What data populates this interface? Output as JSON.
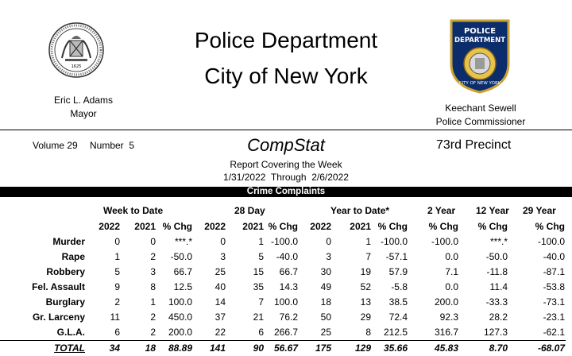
{
  "header": {
    "title_line1": "Police Department",
    "title_line2": "City of New York",
    "mayor_name": "Eric L. Adams",
    "mayor_title": "Mayor",
    "commissioner_name": "Keechant Sewell",
    "commissioner_title": "Police Commissioner",
    "seal_year": "1625",
    "badge_top": "POLICE",
    "badge_mid": "DEPARTMENT",
    "badge_bottom": "CITY OF NEW YORK"
  },
  "report": {
    "volume": "Volume 29",
    "number": "Number  5",
    "compstat": "CompStat",
    "precinct": "73rd Precinct",
    "covering": "Report Covering the Week",
    "dates": "1/31/2022  Through  2/6/2022",
    "band": "Crime Complaints"
  },
  "table": {
    "groups": [
      "Week to Date",
      "28 Day",
      "Year to Date*",
      "2 Year",
      "12 Year",
      "29 Year"
    ],
    "subheaders": [
      "2022",
      "2021",
      "% Chg",
      "2022",
      "2021",
      "% Chg",
      "2022",
      "2021",
      "% Chg",
      "% Chg",
      "% Chg",
      "% Chg"
    ],
    "rows": [
      {
        "label": "Murder",
        "v": [
          "0",
          "0",
          "***.*",
          "0",
          "1",
          "-100.0",
          "0",
          "1",
          "-100.0",
          "-100.0",
          "***.*",
          "-100.0"
        ]
      },
      {
        "label": "Rape",
        "v": [
          "1",
          "2",
          "-50.0",
          "3",
          "5",
          "-40.0",
          "3",
          "7",
          "-57.1",
          "0.0",
          "-50.0",
          "-40.0"
        ]
      },
      {
        "label": "Robbery",
        "v": [
          "5",
          "3",
          "66.7",
          "25",
          "15",
          "66.7",
          "30",
          "19",
          "57.9",
          "7.1",
          "-11.8",
          "-87.1"
        ]
      },
      {
        "label": "Fel. Assault",
        "v": [
          "9",
          "8",
          "12.5",
          "40",
          "35",
          "14.3",
          "49",
          "52",
          "-5.8",
          "0.0",
          "11.4",
          "-53.8"
        ]
      },
      {
        "label": "Burglary",
        "v": [
          "2",
          "1",
          "100.0",
          "14",
          "7",
          "100.0",
          "18",
          "13",
          "38.5",
          "200.0",
          "-33.3",
          "-73.1"
        ]
      },
      {
        "label": "Gr. Larceny",
        "v": [
          "11",
          "2",
          "450.0",
          "37",
          "21",
          "76.2",
          "50",
          "29",
          "72.4",
          "92.3",
          "28.2",
          "-23.1"
        ]
      },
      {
        "label": "G.L.A.",
        "v": [
          "6",
          "2",
          "200.0",
          "22",
          "6",
          "266.7",
          "25",
          "8",
          "212.5",
          "316.7",
          "127.3",
          "-62.1"
        ]
      }
    ],
    "total": {
      "label": "TOTAL",
      "v": [
        "34",
        "18",
        "88.89",
        "141",
        "90",
        "56.67",
        "175",
        "129",
        "35.66",
        "45.83",
        "8.70",
        "-68.07"
      ]
    }
  }
}
